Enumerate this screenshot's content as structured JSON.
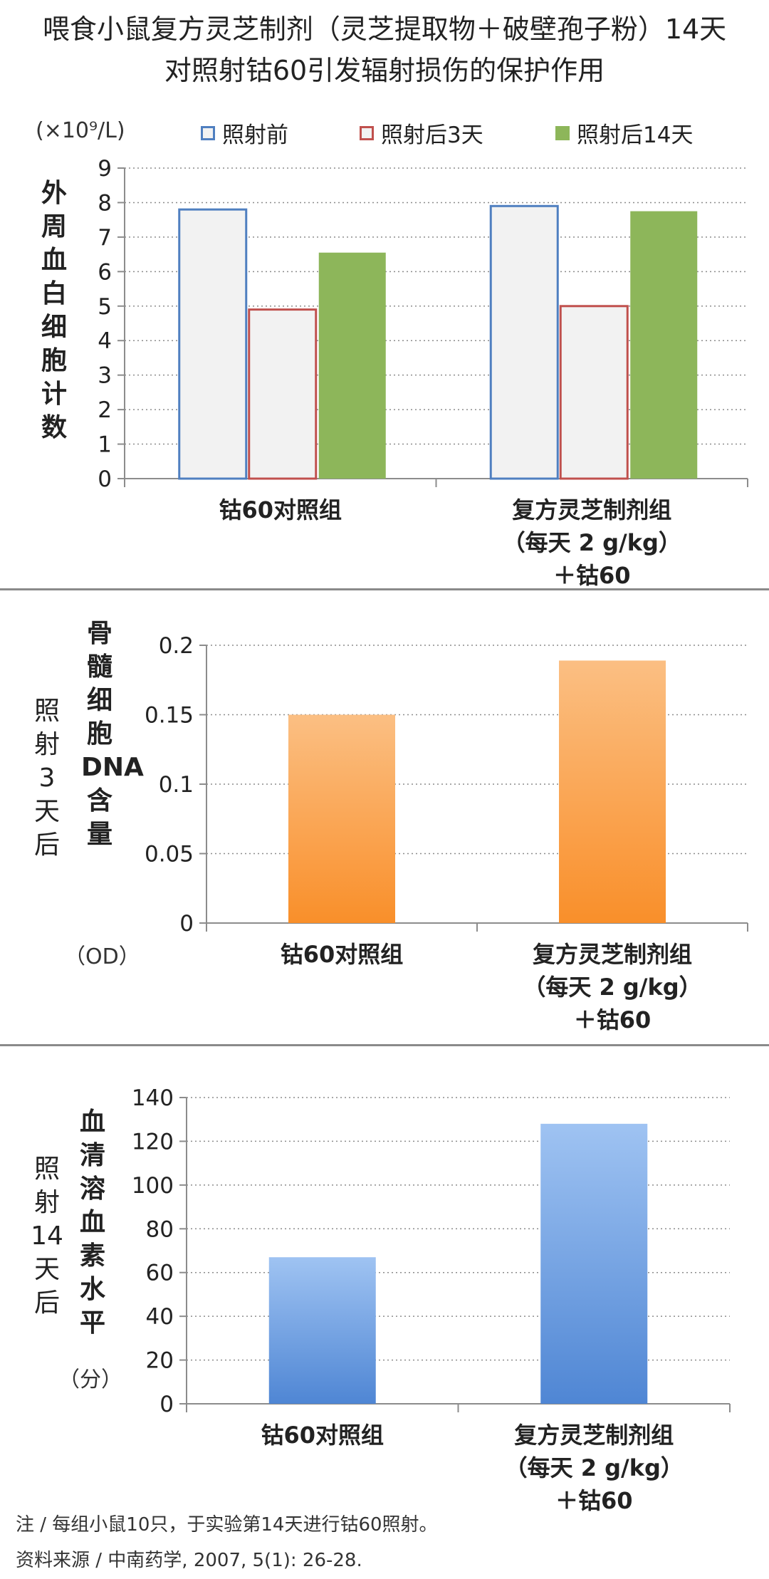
{
  "title": {
    "line1": "喂食小鼠复方灵芝制剂（灵芝提取物＋破壁孢子粉）14天",
    "line2": "对照射钴60引发辐射损伤的保护作用"
  },
  "notes": {
    "note": "注 / 每组小鼠10只，于实验第14天进行钴60照射。",
    "source": "资料来源 / 中南药学, 2007, 5(1): 26-28."
  },
  "colors": {
    "before_edge": "#4f7fc0",
    "day3_edge": "#c0504d",
    "day14_fill": "#8db65a",
    "orange_top": "#fbbf83",
    "orange_bottom": "#f98f2a",
    "blue_top": "#9fc3f2",
    "blue_bottom": "#4f86d4"
  },
  "chart_data": [
    {
      "type": "bar",
      "unit": "(×10⁹/L)",
      "ylabel": "外周血白细胞计数",
      "ylim": [
        0,
        9
      ],
      "yticks": [
        "0",
        "1",
        "2",
        "3",
        "4",
        "5",
        "6",
        "7",
        "8",
        "9"
      ],
      "categories": [
        "钴60对照组",
        "复方灵芝制剂组\n（每天 2 g/kg）\n＋钴60"
      ],
      "series": [
        {
          "name": "照射前",
          "values": [
            7.8,
            7.9
          ]
        },
        {
          "name": "照射后3天",
          "values": [
            4.9,
            5.0
          ]
        },
        {
          "name": "照射后14天",
          "values": [
            6.55,
            7.75
          ]
        }
      ],
      "legend": "top"
    },
    {
      "type": "bar",
      "side_label": "照射3天后",
      "ylabel": "骨髓细胞DNA含量",
      "unit": "（OD）",
      "ylim": [
        0,
        0.2
      ],
      "yticks": [
        "0",
        "0.05",
        "0.1",
        "0.15",
        "0.2"
      ],
      "categories": [
        "钴60对照组",
        "复方灵芝制剂组\n（每天 2 g/kg）\n＋钴60"
      ],
      "values": [
        0.15,
        0.189
      ]
    },
    {
      "type": "bar",
      "side_label": "照射14天后",
      "ylabel": "血清溶血素水平",
      "unit": "（分）",
      "ylim": [
        0,
        140
      ],
      "yticks": [
        "0",
        "20",
        "40",
        "60",
        "80",
        "100",
        "120",
        "140"
      ],
      "categories": [
        "钴60对照组",
        "复方灵芝制剂组\n（每天 2 g/kg）\n＋钴60"
      ],
      "values": [
        67,
        128
      ]
    }
  ]
}
